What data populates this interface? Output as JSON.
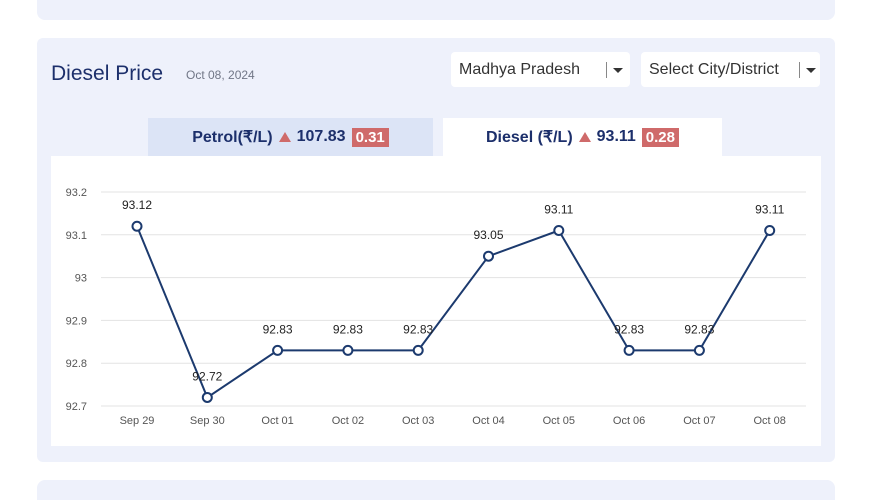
{
  "header": {
    "title": "Diesel Price",
    "date": "Oct 08, 2024",
    "state_select": "Madhya Pradesh",
    "city_select": "Select City/District"
  },
  "tabs": {
    "petrol": {
      "label": "Petrol(₹/L)",
      "price": "107.83",
      "change": "0.31"
    },
    "diesel": {
      "label": "Diesel (₹/L)",
      "price": "93.11",
      "change": "0.28"
    }
  },
  "colors": {
    "line": "#1c3a6e",
    "accent": "#cf6a6a",
    "card": "#eef1fb"
  },
  "chart_data": {
    "type": "line",
    "categories": [
      "Sep 29",
      "Sep 30",
      "Oct 01",
      "Oct 02",
      "Oct 03",
      "Oct 04",
      "Oct 05",
      "Oct 06",
      "Oct 07",
      "Oct 08"
    ],
    "series": [
      {
        "values": [
          93.12,
          92.72,
          92.83,
          92.83,
          92.83,
          93.05,
          93.11,
          92.83,
          92.83,
          93.11
        ]
      }
    ],
    "data_labels": [
      "93.12",
      "92.72",
      "92.83",
      "92.83",
      "92.83",
      "93.05",
      "93.11",
      "92.83",
      "92.83",
      "93.11"
    ],
    "yticks": [
      "93.2",
      "93.1",
      "93",
      "92.9",
      "92.8",
      "92.7"
    ],
    "ylim": [
      92.7,
      93.2
    ],
    "grid": true
  }
}
